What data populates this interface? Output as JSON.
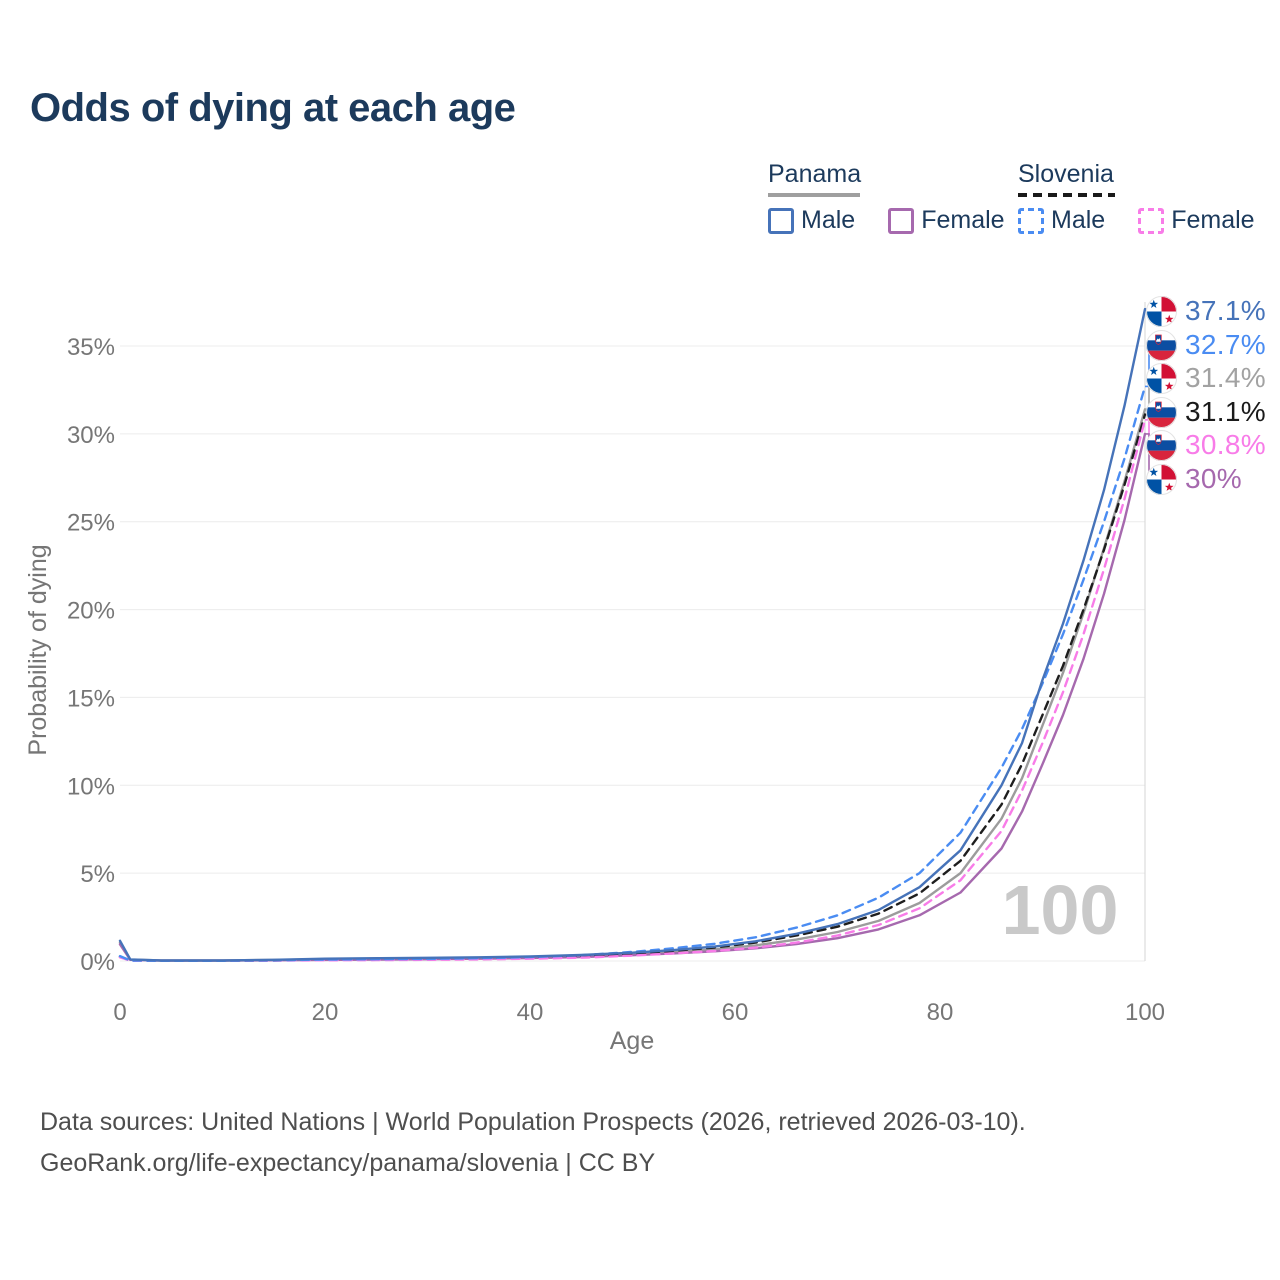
{
  "title": "Odds of dying at each age",
  "legend": {
    "panama": {
      "label": "Panama",
      "male": "Male",
      "female": "Female"
    },
    "slovenia": {
      "label": "Slovenia",
      "male": "Male",
      "female": "Female"
    }
  },
  "colors": {
    "panama_male": "#4673b9",
    "panama_female": "#a669ae",
    "panama_total": "#9c9c9c",
    "slovenia_male": "#4a8cf2",
    "slovenia_female": "#f87ce8",
    "slovenia_total": "#1e1e1e",
    "panama_header_underline": "#9f9f9f",
    "slovenia_header_underline": "#1a1a1a",
    "title_text": "#1c3a5c",
    "axis_text": "#767676",
    "gridline": "#ececec",
    "hover_line": "#d6d6d6",
    "watermark": "#c9c9c9"
  },
  "watermark_label": "100",
  "chart_data": {
    "type": "line",
    "title": "Odds of dying at each age",
    "xlabel": "Age",
    "ylabel": "Probability of dying",
    "xlim": [
      0,
      100
    ],
    "ylim_pct": [
      0,
      37.5
    ],
    "x_ticks": [
      0,
      20,
      40,
      60,
      80,
      100
    ],
    "y_ticks_pct": [
      0,
      5,
      10,
      15,
      20,
      25,
      30,
      35
    ],
    "y_tick_labels": [
      "0%",
      "5%",
      "10%",
      "15%",
      "20%",
      "25%",
      "30%",
      "35%"
    ],
    "grid": "horizontal",
    "hover_age": 100,
    "ages": [
      0,
      1,
      4,
      10,
      15,
      20,
      25,
      30,
      35,
      40,
      45,
      50,
      54,
      58,
      62,
      66,
      70,
      74,
      78,
      82,
      86,
      88,
      90,
      92,
      94,
      96,
      98,
      100
    ],
    "series": [
      {
        "name": "Panama Male",
        "country": "Panama",
        "sex": "Male",
        "line_style": "solid",
        "color": "#4673b9",
        "end_value_pct": 37.1,
        "values_pct": [
          1.15,
          0.09,
          0.03,
          0.03,
          0.07,
          0.13,
          0.16,
          0.18,
          0.21,
          0.26,
          0.34,
          0.47,
          0.62,
          0.82,
          1.12,
          1.55,
          2.1,
          2.9,
          4.2,
          6.3,
          10.0,
          12.4,
          16.0,
          19.2,
          22.8,
          26.8,
          31.6,
          37.1
        ]
      },
      {
        "name": "Slovenia Male",
        "country": "Slovenia",
        "sex": "Male",
        "line_style": "dashed",
        "color": "#4a8cf2",
        "end_value_pct": 32.7,
        "values_pct": [
          0.28,
          0.03,
          0.01,
          0.01,
          0.04,
          0.08,
          0.1,
          0.12,
          0.16,
          0.22,
          0.33,
          0.52,
          0.72,
          0.98,
          1.35,
          1.9,
          2.6,
          3.6,
          5.0,
          7.3,
          11.0,
          13.2,
          15.8,
          18.6,
          21.7,
          25.0,
          28.6,
          32.7
        ]
      },
      {
        "name": "Panama Total",
        "country": "Panama",
        "sex": "Both",
        "line_style": "solid",
        "color": "#9c9c9c",
        "end_value_pct": 31.4,
        "values_pct": [
          1.05,
          0.08,
          0.03,
          0.03,
          0.06,
          0.1,
          0.12,
          0.14,
          0.17,
          0.21,
          0.28,
          0.39,
          0.51,
          0.66,
          0.89,
          1.22,
          1.65,
          2.28,
          3.3,
          5.0,
          8.1,
          10.4,
          13.4,
          16.4,
          19.8,
          23.5,
          27.3,
          31.4
        ]
      },
      {
        "name": "Slovenia Total",
        "country": "Slovenia",
        "sex": "Both",
        "line_style": "dashed",
        "color": "#1e1e1e",
        "end_value_pct": 31.1,
        "values_pct": [
          0.24,
          0.03,
          0.01,
          0.01,
          0.03,
          0.06,
          0.08,
          0.09,
          0.12,
          0.17,
          0.26,
          0.42,
          0.58,
          0.77,
          1.05,
          1.45,
          1.95,
          2.7,
          3.85,
          5.7,
          8.9,
          11.2,
          14.0,
          16.8,
          20.0,
          23.4,
          27.1,
          31.1
        ]
      },
      {
        "name": "Slovenia Female",
        "country": "Slovenia",
        "sex": "Female",
        "line_style": "dashed",
        "color": "#f87ce8",
        "end_value_pct": 30.8,
        "values_pct": [
          0.21,
          0.02,
          0.01,
          0.01,
          0.02,
          0.04,
          0.05,
          0.07,
          0.09,
          0.13,
          0.19,
          0.31,
          0.43,
          0.57,
          0.76,
          1.05,
          1.45,
          2.05,
          3.0,
          4.6,
          7.4,
          9.7,
          12.4,
          15.3,
          18.6,
          22.3,
          26.3,
          30.8
        ]
      },
      {
        "name": "Panama Female",
        "country": "Panama",
        "sex": "Female",
        "line_style": "solid",
        "color": "#a669ae",
        "end_value_pct": 30.0,
        "values_pct": [
          0.95,
          0.07,
          0.02,
          0.02,
          0.04,
          0.06,
          0.08,
          0.1,
          0.13,
          0.17,
          0.23,
          0.33,
          0.43,
          0.55,
          0.72,
          0.97,
          1.3,
          1.8,
          2.6,
          3.9,
          6.4,
          8.5,
          11.2,
          14.0,
          17.2,
          20.9,
          25.1,
          30.0
        ]
      }
    ],
    "end_labels": [
      {
        "text": "37.1%",
        "flag": "panama",
        "series": "Panama Male",
        "value_pct": 37.1,
        "color": "#4673b9"
      },
      {
        "text": "32.7%",
        "flag": "slovenia",
        "series": "Slovenia Male",
        "value_pct": 32.7,
        "color": "#4a8cf2"
      },
      {
        "text": "31.4%",
        "flag": "panama",
        "series": "Panama Total",
        "value_pct": 31.4,
        "color": "#a2a2a2"
      },
      {
        "text": "31.1%",
        "flag": "slovenia",
        "series": "Slovenia Total",
        "value_pct": 31.1,
        "color": "#1a1a1a"
      },
      {
        "text": "30.8%",
        "flag": "slovenia",
        "series": "Slovenia Female",
        "value_pct": 30.8,
        "color": "#f87ce8"
      },
      {
        "text": "30%",
        "flag": "panama",
        "series": "Panama Female",
        "value_pct": 30.0,
        "color": "#a669ae"
      }
    ]
  },
  "footer": {
    "line1": "Data sources: United Nations | World Population Prospects (2026, retrieved 2026-03-10).",
    "line2": "GeoRank.org/life-expectancy/panama/slovenia | CC BY"
  }
}
